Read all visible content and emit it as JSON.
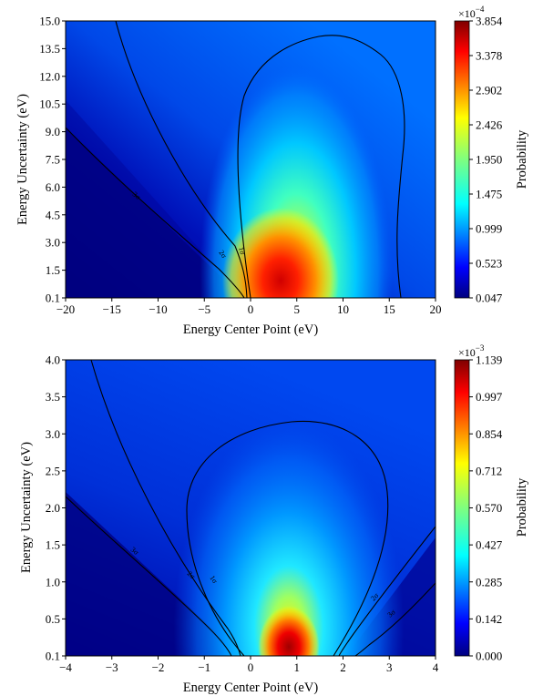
{
  "chart_data": [
    {
      "type": "heatmap",
      "title": "",
      "xlabel": "Energy Center Point (eV)",
      "ylabel": "Energy Uncertainty (eV)",
      "xlim": [
        -20,
        20
      ],
      "ylim": [
        0.1,
        15.0
      ],
      "x_ticks": [
        "−20",
        "−15",
        "−10",
        "−5",
        "0",
        "5",
        "10",
        "15",
        "20"
      ],
      "y_ticks": [
        "0.1",
        "1.5",
        "3.0",
        "4.5",
        "6.0",
        "7.5",
        "9.0",
        "10.5",
        "12.0",
        "13.5",
        "15.0"
      ],
      "colorbar": {
        "label": "Probability",
        "multiplier": "×10",
        "exponent": "−4",
        "ticks": [
          "0.047",
          "0.523",
          "0.999",
          "1.475",
          "1.950",
          "2.426",
          "2.902",
          "3.378",
          "3.854"
        ],
        "min": 0.047,
        "max": 3.854,
        "colormap": "jet"
      },
      "peak": {
        "x": 3.5,
        "y": 1.5,
        "value": 3.854
      },
      "contour_labels": [
        "1σ",
        "2σ",
        "3σ"
      ]
    },
    {
      "type": "heatmap",
      "title": "",
      "xlabel": "Energy Center Point (eV)",
      "ylabel": "Energy Uncertainty (eV)",
      "xlim": [
        -4,
        4
      ],
      "ylim": [
        0.1,
        4.0
      ],
      "x_ticks": [
        "−4",
        "−3",
        "−2",
        "−1",
        "0",
        "1",
        "2",
        "3",
        "4"
      ],
      "y_ticks": [
        "0.1",
        "0.5",
        "1.0",
        "1.5",
        "2.0",
        "2.5",
        "3.0",
        "3.5",
        "4.0"
      ],
      "colorbar": {
        "label": "Probability",
        "multiplier": "×10",
        "exponent": "−3",
        "ticks": [
          "0.000",
          "0.142",
          "0.285",
          "0.427",
          "0.570",
          "0.712",
          "0.854",
          "0.997",
          "1.139"
        ],
        "min": 0.0,
        "max": 1.139,
        "colormap": "jet"
      },
      "peak": {
        "x": 0.7,
        "y": 0.25,
        "value": 1.139
      },
      "contour_labels": [
        "1σ",
        "2σ",
        "3σ"
      ]
    }
  ]
}
